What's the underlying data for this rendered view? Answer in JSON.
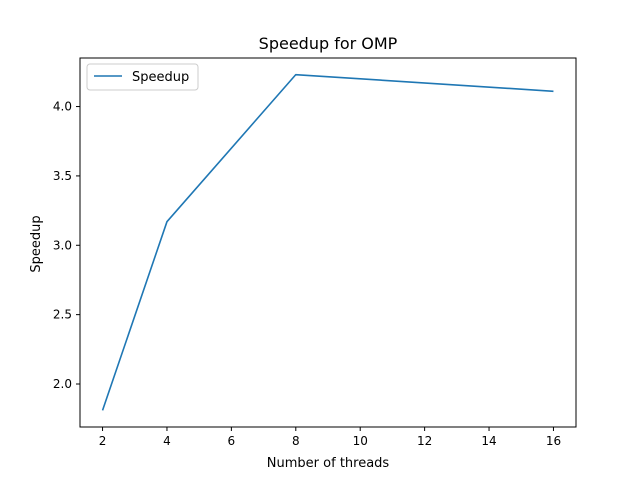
{
  "chart_data": {
    "type": "line",
    "title": "Speedup for OMP",
    "xlabel": "Number of threads",
    "ylabel": "Speedup",
    "x": [
      2,
      4,
      8,
      16
    ],
    "series": [
      {
        "name": "Speedup",
        "values": [
          1.81,
          3.17,
          4.23,
          4.11
        ],
        "color": "#1f77b4"
      }
    ],
    "xlim": [
      1.3,
      16.7
    ],
    "ylim": [
      1.69,
      4.35
    ],
    "xticks": [
      2,
      4,
      6,
      8,
      10,
      12,
      14,
      16
    ],
    "yticks": [
      2.0,
      2.5,
      3.0,
      3.5,
      4.0
    ],
    "ytick_labels": [
      "2.0",
      "2.5",
      "3.0",
      "3.5",
      "4.0"
    ],
    "grid": false,
    "legend": {
      "position": "upper-left",
      "entries": [
        "Speedup"
      ]
    }
  }
}
